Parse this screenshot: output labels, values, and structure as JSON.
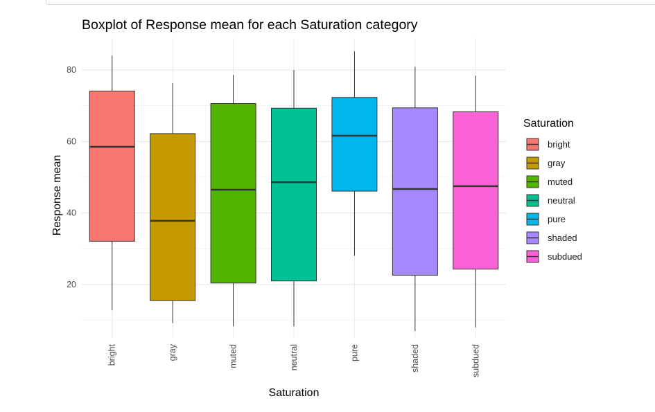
{
  "chart_data": {
    "type": "box",
    "title": "Boxplot of Response mean for each Saturation category",
    "xlabel": "Saturation",
    "ylabel": "Response mean",
    "ylim": [
      5,
      90
    ],
    "yticks": [
      20,
      40,
      60,
      80
    ],
    "grid": true,
    "legend": {
      "title": "Saturation",
      "position": "right"
    },
    "categories": [
      "bright",
      "gray",
      "muted",
      "neutral",
      "pure",
      "shaded",
      "subdued"
    ],
    "colors": [
      "#F8766D",
      "#C49A00",
      "#53B400",
      "#00C094",
      "#00B6EB",
      "#A58AFF",
      "#FB61D7"
    ],
    "boxes": [
      {
        "name": "bright",
        "min": 12.8,
        "q1": 32.1,
        "median": 58.5,
        "q3": 74.1,
        "max": 84.0
      },
      {
        "name": "gray",
        "min": 9.2,
        "q1": 15.5,
        "median": 37.8,
        "q3": 62.2,
        "max": 76.3
      },
      {
        "name": "muted",
        "min": 8.3,
        "q1": 20.4,
        "median": 46.5,
        "q3": 70.6,
        "max": 78.6
      },
      {
        "name": "neutral",
        "min": 8.3,
        "q1": 21.0,
        "median": 48.6,
        "q3": 69.3,
        "max": 80.0
      },
      {
        "name": "pure",
        "min": 28.0,
        "q1": 46.1,
        "median": 61.6,
        "q3": 72.3,
        "max": 85.2
      },
      {
        "name": "shaded",
        "min": 7.0,
        "q1": 22.6,
        "median": 46.7,
        "q3": 69.4,
        "max": 80.9
      },
      {
        "name": "subdued",
        "min": 8.0,
        "q1": 24.3,
        "median": 47.5,
        "q3": 68.3,
        "max": 78.4
      }
    ]
  }
}
